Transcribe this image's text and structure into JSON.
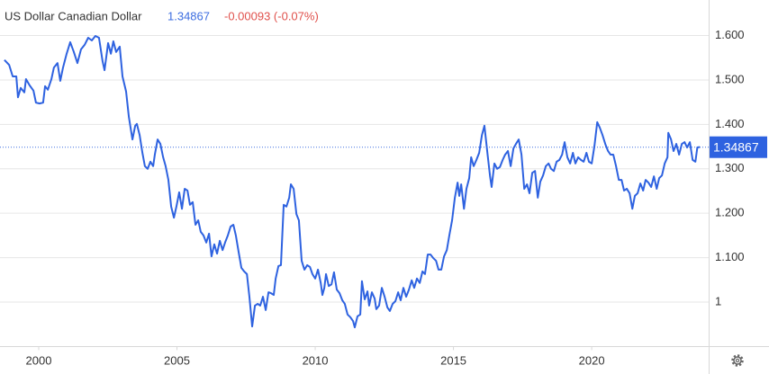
{
  "chart_data": {
    "type": "line",
    "title": "US Dollar Canadian Dollar",
    "last": 1.34867,
    "change": "-0.00093 (-0.07%)",
    "xlim": [
      1998.6,
      2024.23
    ],
    "xticks": [
      2000,
      2005,
      2010,
      2015,
      2020
    ],
    "ylim": [
      0.9,
      1.68
    ],
    "yticks": [
      {
        "value": 1.6,
        "label": "1.600"
      },
      {
        "value": 1.5,
        "label": "1.500"
      },
      {
        "value": 1.4,
        "label": "1.400"
      },
      {
        "value": 1.3,
        "label": "1.300"
      },
      {
        "value": 1.2,
        "label": "1.200"
      },
      {
        "value": 1.1,
        "label": "1.100"
      },
      1
    ],
    "grid": true,
    "series": [
      {
        "color": "#2e62e0",
        "x": [
          1998.76,
          1998.93,
          1999.06,
          1999.19,
          1999.25,
          1999.35,
          1999.48,
          1999.54,
          1999.67,
          1999.81,
          1999.9,
          2000.03,
          2000.16,
          2000.23,
          2000.33,
          2000.46,
          2000.55,
          2000.68,
          2000.78,
          2000.88,
          2001.01,
          2001.14,
          2001.27,
          2001.4,
          2001.53,
          2001.66,
          2001.79,
          2001.92,
          2002.05,
          2002.18,
          2002.31,
          2002.38,
          2002.51,
          2002.61,
          2002.7,
          2002.8,
          2002.93,
          2003.03,
          2003.16,
          2003.26,
          2003.39,
          2003.49,
          2003.55,
          2003.65,
          2003.75,
          2003.84,
          2003.94,
          2004.04,
          2004.14,
          2004.2,
          2004.3,
          2004.4,
          2004.5,
          2004.59,
          2004.69,
          2004.79,
          2004.89,
          2004.98,
          2005.08,
          2005.18,
          2005.28,
          2005.38,
          2005.47,
          2005.57,
          2005.67,
          2005.77,
          2005.86,
          2005.96,
          2006.06,
          2006.16,
          2006.25,
          2006.35,
          2006.45,
          2006.55,
          2006.65,
          2006.74,
          2006.84,
          2006.94,
          2007.04,
          2007.13,
          2007.23,
          2007.33,
          2007.43,
          2007.53,
          2007.62,
          2007.72,
          2007.82,
          2007.92,
          2008.01,
          2008.11,
          2008.21,
          2008.31,
          2008.4,
          2008.5,
          2008.57,
          2008.67,
          2008.76,
          2008.86,
          2008.96,
          2009.06,
          2009.12,
          2009.22,
          2009.32,
          2009.41,
          2009.51,
          2009.61,
          2009.71,
          2009.81,
          2009.9,
          2010.0,
          2010.1,
          2010.2,
          2010.26,
          2010.33,
          2010.39,
          2010.49,
          2010.59,
          2010.68,
          2010.78,
          2010.88,
          2010.98,
          2011.07,
          2011.17,
          2011.27,
          2011.37,
          2011.43,
          2011.53,
          2011.63,
          2011.69,
          2011.79,
          2011.89,
          2011.95,
          2012.05,
          2012.15,
          2012.21,
          2012.31,
          2012.41,
          2012.51,
          2012.61,
          2012.7,
          2012.8,
          2012.9,
          2013.0,
          2013.09,
          2013.19,
          2013.29,
          2013.39,
          2013.49,
          2013.58,
          2013.68,
          2013.78,
          2013.88,
          2013.97,
          2014.07,
          2014.17,
          2014.27,
          2014.37,
          2014.46,
          2014.56,
          2014.66,
          2014.76,
          2014.85,
          2014.95,
          2015.05,
          2015.15,
          2015.21,
          2015.28,
          2015.38,
          2015.47,
          2015.57,
          2015.64,
          2015.73,
          2015.83,
          2015.93,
          2016.03,
          2016.12,
          2016.22,
          2016.32,
          2016.38,
          2016.48,
          2016.58,
          2016.68,
          2016.78,
          2016.87,
          2016.97,
          2017.07,
          2017.17,
          2017.26,
          2017.36,
          2017.46,
          2017.56,
          2017.66,
          2017.75,
          2017.85,
          2017.95,
          2018.05,
          2018.14,
          2018.24,
          2018.34,
          2018.44,
          2018.53,
          2018.63,
          2018.73,
          2018.83,
          2018.93,
          2019.02,
          2019.12,
          2019.22,
          2019.32,
          2019.41,
          2019.51,
          2019.61,
          2019.71,
          2019.81,
          2019.9,
          2020.0,
          2020.1,
          2020.2,
          2020.29,
          2020.39,
          2020.49,
          2020.59,
          2020.68,
          2020.78,
          2020.88,
          2020.98,
          2021.08,
          2021.17,
          2021.27,
          2021.37,
          2021.47,
          2021.56,
          2021.66,
          2021.76,
          2021.86,
          2021.95,
          2022.05,
          2022.15,
          2022.25,
          2022.35,
          2022.44,
          2022.54,
          2022.64,
          2022.74,
          2022.77,
          2022.87,
          2022.96,
          2023.06,
          2023.16,
          2023.26,
          2023.36,
          2023.45,
          2023.55,
          2023.65,
          2023.75,
          2023.82,
          2023.91
        ],
        "values": [
          1.545,
          1.534,
          1.508,
          1.508,
          1.461,
          1.482,
          1.472,
          1.502,
          1.488,
          1.476,
          1.449,
          1.447,
          1.449,
          1.486,
          1.478,
          1.502,
          1.528,
          1.538,
          1.498,
          1.528,
          1.559,
          1.585,
          1.563,
          1.538,
          1.569,
          1.579,
          1.595,
          1.589,
          1.599,
          1.595,
          1.542,
          1.522,
          1.583,
          1.559,
          1.587,
          1.563,
          1.575,
          1.508,
          1.474,
          1.417,
          1.366,
          1.397,
          1.401,
          1.376,
          1.336,
          1.306,
          1.3,
          1.316,
          1.306,
          1.332,
          1.366,
          1.356,
          1.326,
          1.306,
          1.275,
          1.215,
          1.19,
          1.215,
          1.247,
          1.21,
          1.255,
          1.251,
          1.219,
          1.225,
          1.174,
          1.184,
          1.158,
          1.15,
          1.134,
          1.154,
          1.103,
          1.13,
          1.109,
          1.138,
          1.117,
          1.134,
          1.15,
          1.17,
          1.174,
          1.15,
          1.113,
          1.077,
          1.069,
          1.063,
          1.012,
          0.945,
          0.992,
          0.996,
          0.992,
          1.012,
          0.982,
          1.022,
          1.02,
          1.016,
          1.053,
          1.081,
          1.083,
          1.219,
          1.215,
          1.235,
          1.265,
          1.255,
          1.198,
          1.184,
          1.093,
          1.073,
          1.083,
          1.079,
          1.063,
          1.053,
          1.073,
          1.043,
          1.016,
          1.032,
          1.063,
          1.036,
          1.04,
          1.067,
          1.028,
          1.02,
          1.004,
          0.996,
          0.972,
          0.966,
          0.957,
          0.943,
          0.968,
          0.972,
          1.047,
          1.006,
          1.024,
          0.992,
          1.022,
          1.008,
          0.984,
          0.992,
          1.032,
          1.012,
          0.988,
          0.98,
          0.996,
          1.002,
          1.022,
          1.004,
          1.032,
          1.012,
          1.028,
          1.049,
          1.032,
          1.053,
          1.043,
          1.069,
          1.063,
          1.107,
          1.107,
          1.099,
          1.093,
          1.073,
          1.073,
          1.103,
          1.117,
          1.15,
          1.184,
          1.235,
          1.269,
          1.239,
          1.265,
          1.21,
          1.255,
          1.279,
          1.326,
          1.306,
          1.32,
          1.336,
          1.376,
          1.397,
          1.34,
          1.285,
          1.259,
          1.312,
          1.3,
          1.304,
          1.32,
          1.332,
          1.34,
          1.306,
          1.346,
          1.356,
          1.366,
          1.332,
          1.255,
          1.265,
          1.245,
          1.291,
          1.295,
          1.235,
          1.271,
          1.285,
          1.306,
          1.312,
          1.3,
          1.295,
          1.316,
          1.32,
          1.332,
          1.36,
          1.326,
          1.312,
          1.336,
          1.312,
          1.326,
          1.32,
          1.316,
          1.336,
          1.316,
          1.312,
          1.352,
          1.405,
          1.393,
          1.376,
          1.356,
          1.34,
          1.332,
          1.332,
          1.306,
          1.275,
          1.275,
          1.251,
          1.255,
          1.245,
          1.21,
          1.239,
          1.245,
          1.267,
          1.251,
          1.275,
          1.269,
          1.259,
          1.283,
          1.255,
          1.279,
          1.285,
          1.312,
          1.326,
          1.381,
          1.366,
          1.34,
          1.356,
          1.332,
          1.356,
          1.36,
          1.348,
          1.36,
          1.32,
          1.316,
          1.348,
          1.349
        ]
      }
    ]
  }
}
